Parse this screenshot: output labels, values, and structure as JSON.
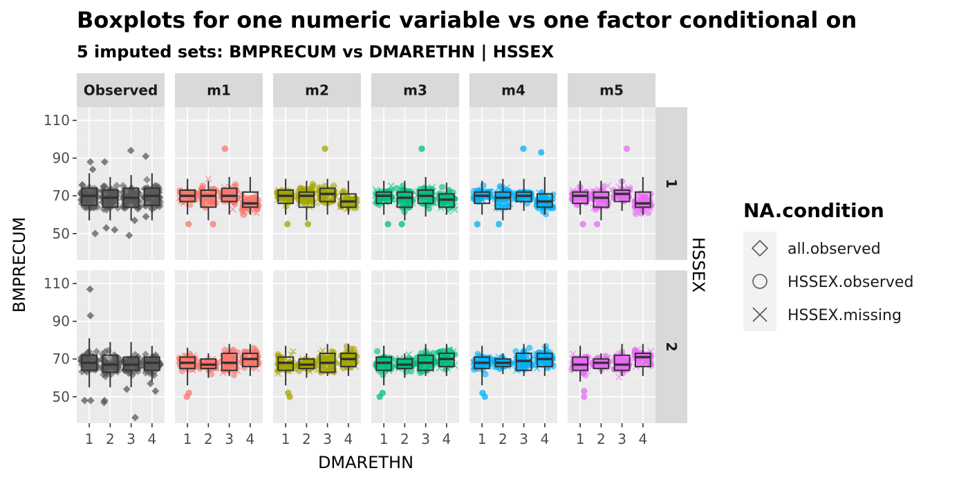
{
  "chart_data": {
    "type": "boxplot",
    "title": "Boxplots for one numeric variable vs one factor conditional on",
    "subtitle": "5  imputed sets:  BMPRECUM vs DMARETHN | HSSEX",
    "xlabel": "DMARETHN",
    "ylabel": "BMPRECUM",
    "row_facet_label": "HSSEX",
    "categories": [
      "1",
      "2",
      "3",
      "4"
    ],
    "ylim": [
      36,
      117
    ],
    "yticks": [
      50,
      70,
      90,
      110
    ],
    "grid": true,
    "legend_position": "right",
    "column_facets": [
      "Observed",
      "m1",
      "m2",
      "m3",
      "m4",
      "m5"
    ],
    "row_facets": [
      "1",
      "2"
    ],
    "panel_colors": [
      "#595959",
      "#F8766D",
      "#B79F00",
      "#00BA38",
      "#00BFC4",
      "#F564E3"
    ],
    "panel_point_colors": [
      "#595959",
      "#F8766D",
      "#A3A500",
      "#00BF7D",
      "#00B0F6",
      "#E76BF3"
    ],
    "legend": {
      "title": "NA.condition",
      "entries": [
        {
          "label": "all.observed",
          "shape": "diamond"
        },
        {
          "label": "HSSEX.observed",
          "shape": "circle"
        },
        {
          "label": "HSSEX.missing",
          "shape": "cross"
        }
      ]
    },
    "boxes": {
      "1": {
        "Observed": [
          [
            57,
            65,
            70,
            74,
            82
          ],
          [
            57,
            64,
            69,
            73,
            80
          ],
          [
            57,
            64,
            69,
            74,
            81
          ],
          [
            57,
            65,
            70,
            74,
            82
          ]
        ],
        "m1": [
          [
            60,
            67,
            70,
            73,
            79
          ],
          [
            57,
            64,
            70,
            73,
            78
          ],
          [
            60,
            67,
            70,
            74,
            80
          ],
          [
            60,
            64,
            66,
            72,
            80
          ]
        ],
        "m2": [
          [
            60,
            66,
            70,
            73,
            79
          ],
          [
            57,
            64,
            70,
            72,
            78
          ],
          [
            60,
            67,
            71,
            74,
            79
          ],
          [
            60,
            64,
            67,
            71,
            78
          ]
        ],
        "m3": [
          [
            60,
            66,
            70,
            72,
            78
          ],
          [
            57,
            64,
            69,
            72,
            78
          ],
          [
            59,
            66,
            70,
            73,
            80
          ],
          [
            60,
            64,
            68,
            71,
            77
          ]
        ],
        "m4": [
          [
            60,
            66,
            70,
            72,
            78
          ],
          [
            57,
            63,
            69,
            72,
            79
          ],
          [
            62,
            67,
            70,
            72,
            79
          ],
          [
            60,
            64,
            67,
            71,
            80
          ]
        ],
        "m5": [
          [
            60,
            66,
            70,
            72,
            78
          ],
          [
            57,
            64,
            69,
            72,
            78
          ],
          [
            62,
            67,
            71,
            73,
            79
          ],
          [
            60,
            64,
            66,
            72,
            80
          ]
        ]
      },
      "2": {
        "Observed": [
          [
            55,
            64,
            68,
            72,
            81
          ],
          [
            55,
            63,
            67,
            72,
            79
          ],
          [
            55,
            64,
            67,
            71,
            79
          ],
          [
            58,
            64,
            68,
            71,
            77
          ]
        ],
        "m1": [
          [
            56,
            65,
            68,
            71,
            76
          ],
          [
            60,
            65,
            67,
            70,
            73
          ],
          [
            61,
            64,
            68,
            73,
            78
          ],
          [
            61,
            66,
            70,
            73,
            78
          ]
        ],
        "m2": [
          [
            56,
            64,
            68,
            71,
            77
          ],
          [
            60,
            65,
            67,
            70,
            73
          ],
          [
            61,
            63,
            68,
            73,
            78
          ],
          [
            61,
            66,
            70,
            73,
            78
          ]
        ],
        "m3": [
          [
            56,
            64,
            68,
            71,
            77
          ],
          [
            60,
            65,
            67,
            70,
            73
          ],
          [
            61,
            64,
            68,
            72,
            78
          ],
          [
            61,
            66,
            70,
            73,
            78
          ]
        ],
        "m4": [
          [
            56,
            65,
            68,
            71,
            77
          ],
          [
            62,
            66,
            68,
            70,
            73
          ],
          [
            61,
            64,
            69,
            73,
            78
          ],
          [
            61,
            66,
            70,
            73,
            78
          ]
        ],
        "m5": [
          [
            58,
            64,
            67,
            71,
            77
          ],
          [
            62,
            65,
            68,
            70,
            73
          ],
          [
            61,
            64,
            67,
            72,
            78
          ],
          [
            61,
            66,
            71,
            73,
            78
          ]
        ]
      }
    },
    "outliers": {
      "1": {
        "Observed": [
          [
            88,
            84,
            50
          ],
          [
            88,
            53,
            52
          ],
          [
            94,
            57,
            49
          ],
          [
            91,
            59
          ]
        ],
        "m1": [
          [
            55
          ],
          [
            55
          ],
          [
            95
          ],
          []
        ],
        "m2": [
          [
            55
          ],
          [
            55
          ],
          [
            95
          ],
          []
        ],
        "m3": [
          [
            55
          ],
          [
            55
          ],
          [
            95
          ],
          []
        ],
        "m4": [
          [
            55
          ],
          [
            55
          ],
          [
            95
          ],
          [
            93
          ]
        ],
        "m5": [
          [
            55
          ],
          [
            55
          ],
          [
            95
          ],
          []
        ]
      },
      "2": {
        "Observed": [
          [
            107,
            93,
            48,
            48
          ],
          [
            48,
            47
          ],
          [
            54,
            39
          ],
          [
            53,
            57
          ]
        ],
        "m1": [
          [
            52,
            50
          ],
          [],
          [],
          []
        ],
        "m2": [
          [
            52,
            50
          ],
          [],
          [],
          []
        ],
        "m3": [
          [
            52,
            50
          ],
          [],
          [],
          []
        ],
        "m4": [
          [
            52,
            50
          ],
          [],
          [],
          []
        ],
        "m5": [
          [
            53,
            50
          ],
          [],
          [],
          []
        ]
      }
    }
  }
}
